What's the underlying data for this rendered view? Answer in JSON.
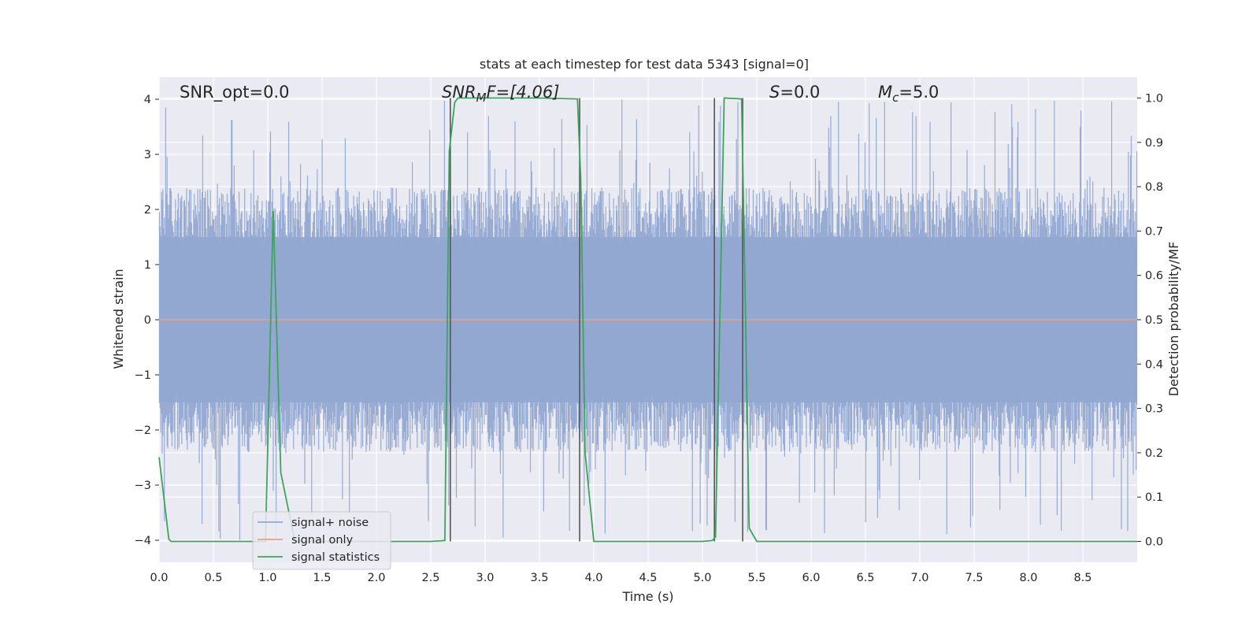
{
  "chart_data": {
    "type": "line",
    "title": "stats at each timestep for test data 5343 [signal=0]",
    "xlabel": "Time (s)",
    "ylabel": "Whitened strain",
    "y2label": "Detection probability/MF",
    "xlim": [
      0.0,
      9.0
    ],
    "ylim": [
      -4.4,
      4.4
    ],
    "y2lim": [
      -0.047,
      1.047
    ],
    "xticks": [
      "0.0",
      "0.5",
      "1.0",
      "1.5",
      "2.0",
      "2.5",
      "3.0",
      "3.5",
      "4.0",
      "4.5",
      "5.0",
      "5.5",
      "6.0",
      "6.5",
      "7.0",
      "7.5",
      "8.0",
      "8.5"
    ],
    "yticks": [
      "4",
      "3",
      "2",
      "1",
      "0",
      "−1",
      "−2",
      "−3",
      "−4"
    ],
    "y2ticks": [
      "1.0",
      "0.9",
      "0.8",
      "0.7",
      "0.6",
      "0.5",
      "0.4",
      "0.3",
      "0.2",
      "0.1",
      "0.0"
    ],
    "grid": true,
    "legend_position": "lower-left",
    "annotations": {
      "snr_opt": "SNR_opt=0.0",
      "snr_mf_main": "SNR",
      "snr_mf_sub": "M",
      "snr_mf_rest": "F=[4.06]",
      "s_main": "S",
      "s_rest": "=0.0",
      "mc_main": "M",
      "mc_sub": "c",
      "mc_rest": "=5.0"
    },
    "series": [
      {
        "name": "signal+ noise",
        "color": "#92a8d1",
        "axis": "left",
        "kind": "noise",
        "envelope_typical": 1.5,
        "envelope_max": 4.0
      },
      {
        "name": "signal only",
        "color": "#e8a180",
        "axis": "left",
        "x": [
          0.0,
          9.0
        ],
        "y": [
          0.0,
          0.0
        ]
      },
      {
        "name": "signal statistics",
        "color": "#3ba55c",
        "axis": "right",
        "x": [
          0.0,
          0.09,
          0.11,
          0.2,
          0.9,
          0.98,
          1.05,
          1.12,
          1.25,
          1.4,
          2.5,
          2.63,
          2.67,
          2.72,
          2.75,
          3.5,
          3.85,
          3.88,
          3.92,
          4.0,
          4.5,
          5.0,
          5.09,
          5.12,
          5.2,
          5.36,
          5.39,
          5.43,
          5.5,
          6.0,
          9.0
        ],
        "y": [
          0.19,
          0.005,
          0.0,
          0.0,
          0.0,
          0.0,
          0.745,
          0.155,
          0.0,
          0.0,
          0.0,
          0.002,
          0.88,
          0.99,
          1.0,
          1.0,
          0.998,
          0.82,
          0.2,
          0.0,
          0.0,
          0.0,
          0.002,
          0.01,
          1.0,
          0.998,
          0.6,
          0.03,
          0.0,
          0.0,
          0.0
        ]
      }
    ],
    "vertical_lines_x": [
      2.68,
      3.87,
      5.11,
      5.37
    ],
    "vertical_lines_color": "#555555"
  }
}
